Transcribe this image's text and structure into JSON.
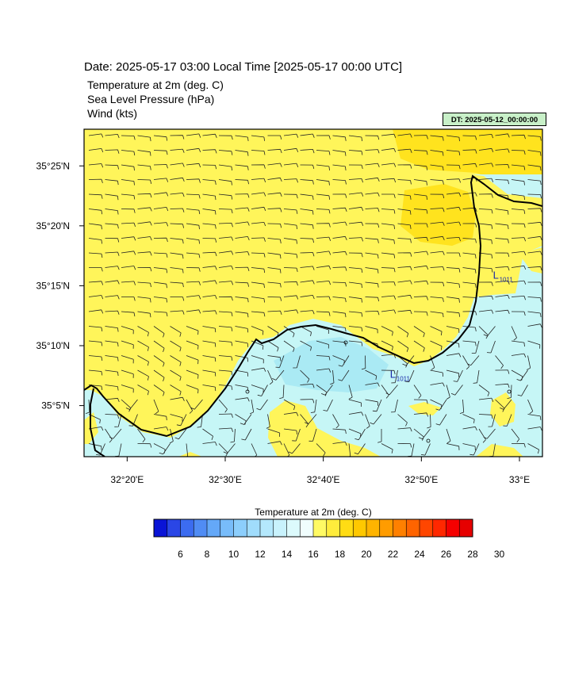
{
  "header": {
    "date_line": "Date: 2025-05-17  03:00 Local Time [2025-05-17  00:00 UTC]",
    "fields": [
      "Temperature at 2m   (deg. C)",
      "Sea Level Pressure   (hPa)",
      "Wind   (kts)"
    ],
    "dt_badge": "DT: 2025-05-12_00:00:00"
  },
  "map": {
    "lat_labels": [
      "35°25'N",
      "35°20'N",
      "35°15'N",
      "35°10'N",
      "35°5'N"
    ],
    "lon_labels": [
      "32°20'E",
      "32°30'E",
      "32°40'E",
      "32°50'E",
      "33°E"
    ],
    "pressure_lows": [
      {
        "symbol": "L",
        "value": "1011",
        "lon": 32.955,
        "lat": 35.26
      },
      {
        "symbol": "L",
        "value": "1011",
        "lon": 32.78,
        "lat": 35.122
      }
    ]
  },
  "colorbar": {
    "title": "Temperature at 2m  (deg. C)",
    "tick_labels": [
      "6",
      "8",
      "10",
      "12",
      "14",
      "16",
      "18",
      "20",
      "22",
      "24",
      "26",
      "28",
      "30"
    ],
    "colors": [
      "#0a14d6",
      "#2a46e6",
      "#3c6cf0",
      "#508cf4",
      "#64a8f8",
      "#78bcfa",
      "#8ccefc",
      "#a0dcfc",
      "#b4e8fc",
      "#c8f2fc",
      "#dcfafc",
      "#f0fdfd",
      "#fffa64",
      "#ffec3c",
      "#ffdc14",
      "#ffc800",
      "#ffb400",
      "#ff9c00",
      "#ff8000",
      "#ff6400",
      "#ff4600",
      "#ff2800",
      "#f50000",
      "#e60000"
    ]
  }
}
